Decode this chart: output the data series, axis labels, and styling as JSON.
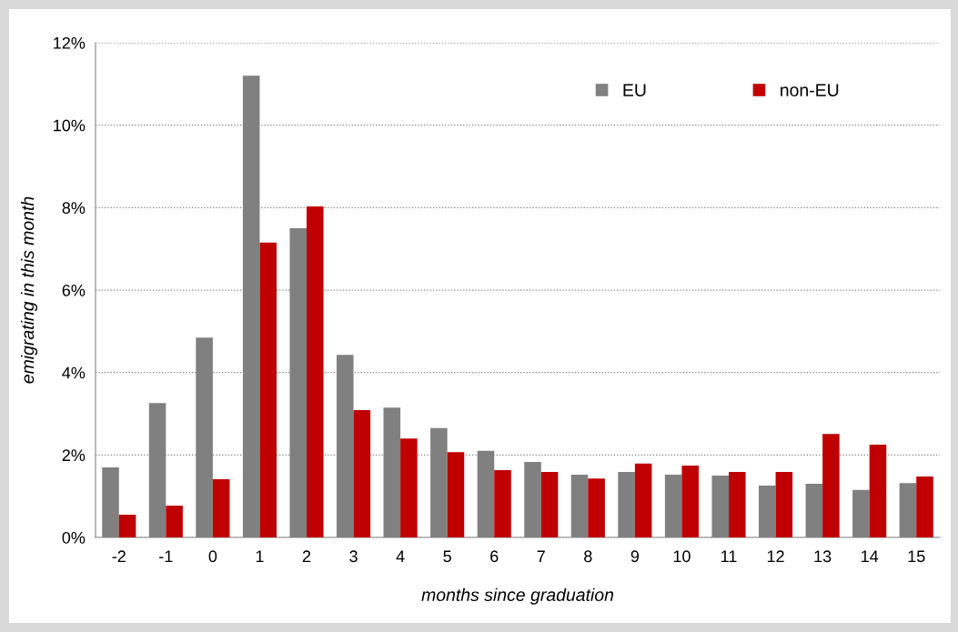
{
  "chart_data": {
    "type": "bar",
    "xlabel": "months since graduation",
    "ylabel": "emigrating in this month",
    "categories": [
      "-2",
      "-1",
      "0",
      "1",
      "2",
      "3",
      "4",
      "5",
      "6",
      "7",
      "8",
      "9",
      "10",
      "11",
      "12",
      "13",
      "14",
      "15"
    ],
    "series": [
      {
        "name": "EU",
        "color": "#808080",
        "values": [
          1.7,
          3.26,
          4.85,
          11.2,
          7.5,
          4.43,
          3.15,
          2.65,
          2.1,
          1.83,
          1.52,
          1.59,
          1.52,
          1.5,
          1.26,
          1.3,
          1.15,
          1.32
        ]
      },
      {
        "name": "non-EU",
        "color": "#c00000",
        "values": [
          0.55,
          0.77,
          1.41,
          7.15,
          8.03,
          3.09,
          2.4,
          2.07,
          1.63,
          1.59,
          1.43,
          1.79,
          1.74,
          1.59,
          1.59,
          2.51,
          2.25,
          1.48
        ]
      }
    ],
    "ylim": [
      0,
      12
    ],
    "yticks": [
      {
        "value": 0,
        "label": "0%"
      },
      {
        "value": 2,
        "label": "2%"
      },
      {
        "value": 4,
        "label": "4%"
      },
      {
        "value": 6,
        "label": "6%"
      },
      {
        "value": 8,
        "label": "8%"
      },
      {
        "value": 10,
        "label": "10%"
      },
      {
        "value": 12,
        "label": "12%"
      }
    ],
    "grid": "y",
    "legend": "top right"
  }
}
